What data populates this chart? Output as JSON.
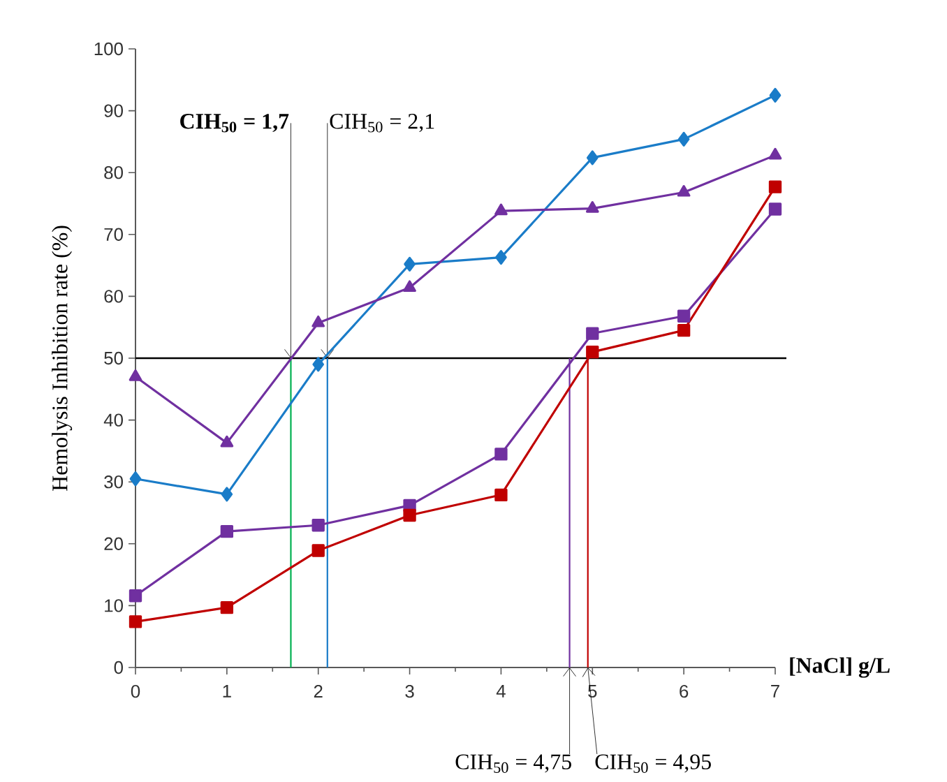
{
  "chart_data": {
    "type": "line",
    "xlabel": "[NaCl] g/L",
    "ylabel": "Hemolysis Inhibition rate  (%)",
    "x": [
      0,
      1,
      2,
      3,
      4,
      5,
      6,
      7
    ],
    "xlim": [
      0,
      7
    ],
    "xticks": [
      0,
      1,
      2,
      3,
      4,
      5,
      6,
      7
    ],
    "ylim": [
      0,
      100
    ],
    "yticks": [
      0,
      10,
      20,
      30,
      40,
      50,
      60,
      70,
      80,
      90,
      100
    ],
    "grid": false,
    "series": [
      {
        "color": "#1a7cc8",
        "marker": "diamond",
        "values": [
          30.5,
          28.0,
          49.0,
          65.2,
          66.3,
          82.4,
          85.4,
          92.5
        ]
      },
      {
        "color": "#7030a0",
        "marker": "triangle",
        "values": [
          47.0,
          36.3,
          55.7,
          61.4,
          73.8,
          74.2,
          76.8,
          82.8
        ]
      },
      {
        "color": "#7030a0",
        "marker": "square",
        "values": [
          11.6,
          22.0,
          23.0,
          26.2,
          34.5,
          54.0,
          56.8,
          74.1
        ]
      },
      {
        "color": "#c00000",
        "marker": "square",
        "values": [
          7.4,
          9.7,
          18.9,
          24.6,
          27.9,
          51.0,
          54.5,
          77.7
        ]
      }
    ],
    "ref_lines": [
      {
        "axis": "y",
        "value": 50,
        "color": "#000000"
      },
      {
        "axis": "x",
        "value": 1.7,
        "color": "#00b050",
        "label": "CIH$_{50}$ = 1,7"
      },
      {
        "axis": "x",
        "value": 2.1,
        "color": "#1a7cc8",
        "label": "CIH$_{50}$ = 2,1"
      },
      {
        "axis": "x",
        "value": 4.75,
        "color": "#7030a0",
        "label": "CIH$_{50}$ = 4,75"
      },
      {
        "axis": "x",
        "value": 4.95,
        "color": "#c00000",
        "label": "CIH$_{50}$ = 4,95"
      }
    ]
  }
}
